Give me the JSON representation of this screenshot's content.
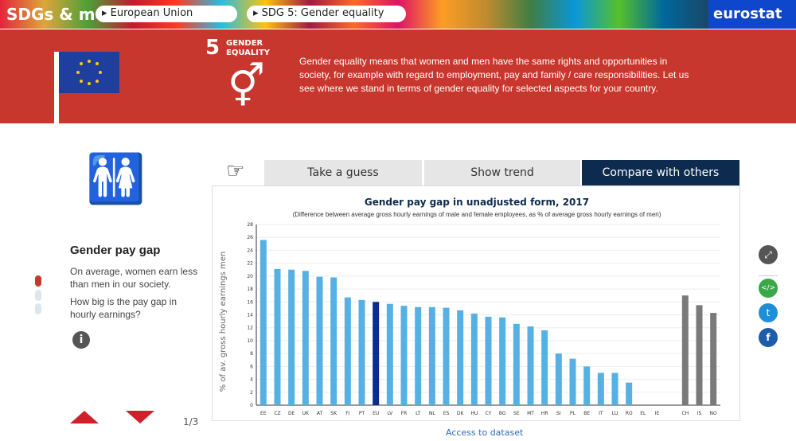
{
  "header": {
    "logo": "SDGs & me",
    "breadcrumb_country": "European Union",
    "breadcrumb_goal": "SDG 5: Gender equality",
    "brand": "eurostat"
  },
  "goal": {
    "number": "5",
    "title_line1": "GENDER",
    "title_line2": "EQUALITY",
    "description": "Gender equality means that women and men have the same rights and opportunities in society, for example with regard to employment, pay and family / care responsibilities. Let us see where we stand in terms of gender equality for selected aspects for your country."
  },
  "tabs": [
    {
      "label": "Take a guess"
    },
    {
      "label": "Show trend"
    },
    {
      "label": "Compare with others"
    }
  ],
  "indicator": {
    "title": "Gender pay gap",
    "text1": "On average, women earn less than men in our society.",
    "text2": "How big is the pay gap in hourly earnings?",
    "pager": "1/3"
  },
  "footer": {
    "link": "Access to dataset"
  },
  "colors": {
    "bar": "#56b0e3",
    "eu": "#0b2d8c",
    "other": "#7a7a7a"
  },
  "chart_data": {
    "type": "bar",
    "title": "Gender pay gap in unadjusted form, 2017",
    "subtitle": "(Difference between average gross hourly earnings of male and female employees, as % of average gross hourly earnings of men)",
    "ylabel": "% of av. gross hourly earnings men",
    "ylim": [
      0,
      28
    ],
    "yticks": [
      0,
      2,
      4,
      6,
      8,
      10,
      12,
      14,
      16,
      18,
      20,
      22,
      24,
      26,
      28
    ],
    "categories": [
      "EE",
      "CZ",
      "DE",
      "UK",
      "AT",
      "SK",
      "FI",
      "PT",
      "EU",
      "LV",
      "FR",
      "LT",
      "NL",
      "ES",
      "DK",
      "HU",
      "CY",
      "BG",
      "SE",
      "MT",
      "HR",
      "SI",
      "PL",
      "BE",
      "IT",
      "LU",
      "RO",
      "EL",
      "IE",
      "",
      "CH",
      "IS",
      "NO"
    ],
    "values": [
      25.6,
      21.1,
      21.0,
      20.8,
      19.9,
      19.8,
      16.7,
      16.3,
      16.0,
      15.7,
      15.4,
      15.2,
      15.2,
      15.1,
      14.7,
      14.2,
      13.7,
      13.6,
      12.6,
      12.2,
      11.6,
      8.0,
      7.2,
      6.0,
      5.0,
      5.0,
      3.5,
      null,
      null,
      null,
      17.0,
      15.5,
      14.3
    ]
  }
}
